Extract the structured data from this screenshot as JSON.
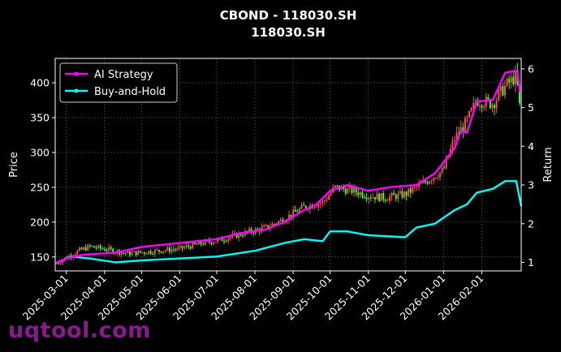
{
  "watermark": "uqtool.com",
  "chart_data": {
    "type": "line",
    "title": "CBOND - 118030.SH",
    "subtitle": "118030.SH",
    "ylabel": "Price",
    "y2label": "Return",
    "ylim": [
      130,
      435
    ],
    "y2lim": [
      0.78,
      6.27
    ],
    "yticks": [
      150,
      200,
      250,
      300,
      350,
      400
    ],
    "y2ticks": [
      1,
      2,
      3,
      4,
      5,
      6
    ],
    "xlim": [
      "2025-02-20",
      "2026-03-05"
    ],
    "xticks": [
      "2025-03-01",
      "2025-04-01",
      "2025-05-01",
      "2025-06-01",
      "2025-07-01",
      "2025-08-01",
      "2025-09-01",
      "2025-10-01",
      "2025-11-01",
      "2025-12-01",
      "2026-01-01",
      "2026-02-01"
    ],
    "grid": true,
    "legend_position": "top-left",
    "colors": {
      "up": "#ff4d4d",
      "down": "#33ff33",
      "ai": "#ff00ff",
      "bh": "#00ffff",
      "background": "#000000"
    },
    "price_anchors": [
      [
        "2025-02-20",
        140
      ],
      [
        "2025-03-10",
        158
      ],
      [
        "2025-03-20",
        165
      ],
      [
        "2025-04-05",
        160
      ],
      [
        "2025-04-20",
        155
      ],
      [
        "2025-05-10",
        158
      ],
      [
        "2025-06-01",
        162
      ],
      [
        "2025-06-20",
        170
      ],
      [
        "2025-07-05",
        175
      ],
      [
        "2025-07-25",
        185
      ],
      [
        "2025-08-10",
        192
      ],
      [
        "2025-08-25",
        205
      ],
      [
        "2025-09-10",
        222
      ],
      [
        "2025-09-25",
        228
      ],
      [
        "2025-10-05",
        250
      ],
      [
        "2025-10-20",
        245
      ],
      [
        "2025-11-01",
        238
      ],
      [
        "2025-11-15",
        235
      ],
      [
        "2025-12-01",
        240
      ],
      [
        "2025-12-15",
        255
      ],
      [
        "2026-01-01",
        275
      ],
      [
        "2026-01-10",
        320
      ],
      [
        "2026-01-20",
        345
      ],
      [
        "2026-01-28",
        375
      ],
      [
        "2026-02-10",
        370
      ],
      [
        "2026-02-20",
        395
      ],
      [
        "2026-03-01",
        410
      ],
      [
        "2026-03-05",
        345
      ]
    ],
    "series": [
      {
        "name": "AI Strategy",
        "points": [
          [
            "2025-02-20",
            0.98
          ],
          [
            "2025-03-01",
            1.1
          ],
          [
            "2025-03-15",
            1.2
          ],
          [
            "2025-04-10",
            1.25
          ],
          [
            "2025-05-01",
            1.4
          ],
          [
            "2025-06-01",
            1.5
          ],
          [
            "2025-07-01",
            1.6
          ],
          [
            "2025-07-20",
            1.75
          ],
          [
            "2025-08-10",
            1.85
          ],
          [
            "2025-08-25",
            2.05
          ],
          [
            "2025-09-10",
            2.35
          ],
          [
            "2025-09-20",
            2.5
          ],
          [
            "2025-10-01",
            2.85
          ],
          [
            "2025-10-15",
            3.0
          ],
          [
            "2025-11-01",
            2.85
          ],
          [
            "2025-11-20",
            2.95
          ],
          [
            "2025-12-10",
            3.0
          ],
          [
            "2025-12-25",
            3.3
          ],
          [
            "2026-01-10",
            3.95
          ],
          [
            "2026-01-15",
            4.4
          ],
          [
            "2026-01-20",
            4.35
          ],
          [
            "2026-01-28",
            5.15
          ],
          [
            "2026-02-10",
            5.2
          ],
          [
            "2026-02-20",
            5.9
          ],
          [
            "2026-02-28",
            5.95
          ],
          [
            "2026-03-02",
            5.9
          ],
          [
            "2026-03-04",
            5.4
          ]
        ]
      },
      {
        "name": "Buy-and-Hold",
        "points": [
          [
            "2025-02-20",
            0.98
          ],
          [
            "2025-03-05",
            1.15
          ],
          [
            "2025-03-20",
            1.1
          ],
          [
            "2025-04-10",
            1.0
          ],
          [
            "2025-05-01",
            1.05
          ],
          [
            "2025-06-01",
            1.1
          ],
          [
            "2025-07-01",
            1.15
          ],
          [
            "2025-08-01",
            1.3
          ],
          [
            "2025-08-25",
            1.5
          ],
          [
            "2025-09-10",
            1.6
          ],
          [
            "2025-09-25",
            1.55
          ],
          [
            "2025-10-01",
            1.8
          ],
          [
            "2025-10-15",
            1.8
          ],
          [
            "2025-11-01",
            1.7
          ],
          [
            "2025-12-01",
            1.65
          ],
          [
            "2025-12-10",
            1.9
          ],
          [
            "2025-12-25",
            2.0
          ],
          [
            "2026-01-10",
            2.35
          ],
          [
            "2026-01-20",
            2.5
          ],
          [
            "2026-01-28",
            2.8
          ],
          [
            "2026-02-10",
            2.9
          ],
          [
            "2026-02-20",
            3.1
          ],
          [
            "2026-03-01",
            3.1
          ],
          [
            "2026-03-05",
            2.45
          ]
        ]
      }
    ]
  }
}
